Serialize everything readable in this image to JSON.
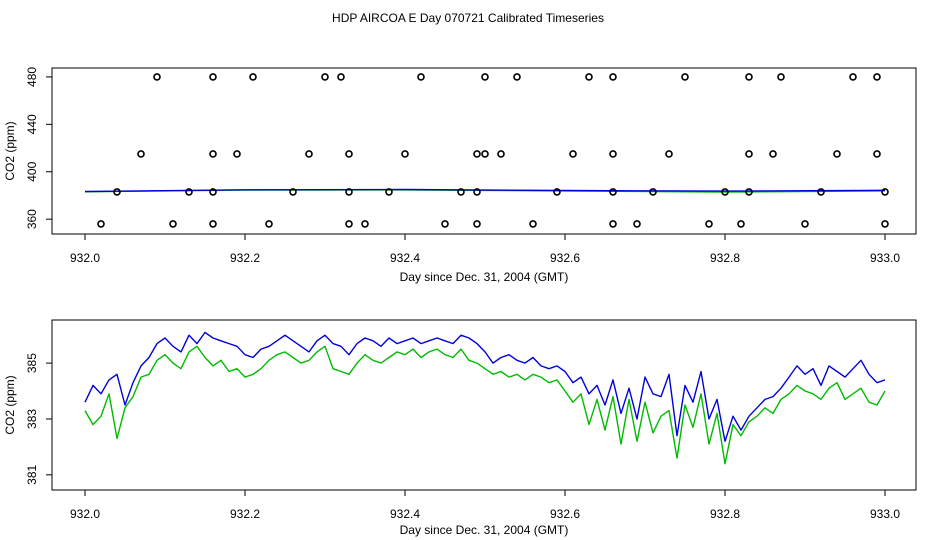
{
  "title": "HDP AIRCOA E  Day 070721  Calibrated Timeseries",
  "colors": {
    "blue": "#0000dd",
    "green": "#00bb00",
    "black": "#000000"
  },
  "chart_data": [
    {
      "type": "scatter",
      "xlabel": "Day since Dec. 31, 2004 (GMT)",
      "ylabel": "CO2 (ppm)",
      "xlim": [
        932.0,
        933.0
      ],
      "ylim": [
        350,
        485
      ],
      "xticks": [
        "932.0",
        "932.2",
        "932.4",
        "932.6",
        "932.8",
        "933.0"
      ],
      "yticks": [
        "360",
        "400",
        "440",
        "480"
      ],
      "grid": false,
      "points_480": [
        932.09,
        932.16,
        932.21,
        932.3,
        932.32,
        932.42,
        932.5,
        932.54,
        932.63,
        932.66,
        932.75,
        932.83,
        932.87,
        932.96,
        932.99
      ],
      "points_415": [
        932.07,
        932.16,
        932.19,
        932.28,
        932.33,
        932.4,
        932.49,
        932.5,
        932.52,
        932.61,
        932.66,
        932.73,
        932.83,
        932.86,
        932.94,
        932.99
      ],
      "points_383": [
        932.04,
        932.13,
        932.16,
        932.26,
        932.33,
        932.38,
        932.47,
        932.49,
        932.59,
        932.66,
        932.71,
        932.8,
        932.83,
        932.92,
        933.0
      ],
      "points_356": [
        932.02,
        932.11,
        932.16,
        932.23,
        932.33,
        932.35,
        932.45,
        932.49,
        932.56,
        932.66,
        932.69,
        932.78,
        932.82,
        932.9,
        933.0
      ],
      "series": [
        {
          "color": "#0000dd",
          "x": [
            932.0,
            932.2,
            932.4,
            932.6,
            932.8,
            933.0
          ],
          "values": [
            383.3,
            384.8,
            385.0,
            384.2,
            383.7,
            384.3
          ]
        },
        {
          "color": "#00bb00",
          "x": [
            932.0,
            932.2,
            932.4,
            932.6,
            932.8,
            933.0
          ],
          "values": [
            383.1,
            384.5,
            384.7,
            383.8,
            382.9,
            383.8
          ]
        }
      ]
    },
    {
      "type": "line",
      "xlabel": "Day since Dec. 31, 2004 (GMT)",
      "ylabel": "CO2 (ppm)",
      "xlim": [
        932.0,
        933.0
      ],
      "ylim": [
        380.6,
        386.4
      ],
      "xticks": [
        "932.0",
        "932.2",
        "932.4",
        "932.6",
        "932.8",
        "933.0"
      ],
      "yticks": [
        "381",
        "383",
        "385"
      ],
      "grid": false,
      "series": [
        {
          "color": "#0000dd",
          "x": [
            932.0,
            932.01,
            932.02,
            932.03,
            932.04,
            932.05,
            932.06,
            932.07,
            932.08,
            932.09,
            932.1,
            932.11,
            932.12,
            932.13,
            932.14,
            932.15,
            932.16,
            932.17,
            932.18,
            932.19,
            932.2,
            932.21,
            932.22,
            932.23,
            932.24,
            932.25,
            932.26,
            932.27,
            932.28,
            932.29,
            932.3,
            932.31,
            932.32,
            932.33,
            932.34,
            932.35,
            932.36,
            932.37,
            932.38,
            932.39,
            932.4,
            932.41,
            932.42,
            932.43,
            932.44,
            932.45,
            932.46,
            932.47,
            932.48,
            932.49,
            932.5,
            932.51,
            932.52,
            932.53,
            932.54,
            932.55,
            932.56,
            932.57,
            932.58,
            932.59,
            932.6,
            932.61,
            932.62,
            932.63,
            932.64,
            932.65,
            932.66,
            932.67,
            932.68,
            932.69,
            932.7,
            932.71,
            932.72,
            932.73,
            932.74,
            932.75,
            932.76,
            932.77,
            932.78,
            932.79,
            932.8,
            932.81,
            932.82,
            932.83,
            932.84,
            932.85,
            932.86,
            932.87,
            932.88,
            932.89,
            932.9,
            932.91,
            932.92,
            932.93,
            932.94,
            932.95,
            932.96,
            932.97,
            932.98,
            932.99,
            933.0
          ],
          "values": [
            383.6,
            384.2,
            383.9,
            384.4,
            384.6,
            383.5,
            384.3,
            384.9,
            385.2,
            385.7,
            385.9,
            385.6,
            385.4,
            386.0,
            385.7,
            386.1,
            385.9,
            385.8,
            385.7,
            385.6,
            385.3,
            385.2,
            385.5,
            385.6,
            385.8,
            386.0,
            385.8,
            385.6,
            385.4,
            385.8,
            386.0,
            385.7,
            385.6,
            385.3,
            385.7,
            385.9,
            385.8,
            385.6,
            385.9,
            385.7,
            385.8,
            385.9,
            385.7,
            385.8,
            385.9,
            385.8,
            385.7,
            386.0,
            385.9,
            385.7,
            385.4,
            385.0,
            385.2,
            385.3,
            385.1,
            385.0,
            385.2,
            384.9,
            384.8,
            384.9,
            384.7,
            384.3,
            384.5,
            383.9,
            384.2,
            383.5,
            384.4,
            383.2,
            384.1,
            383.0,
            384.5,
            383.9,
            383.8,
            384.6,
            382.4,
            384.2,
            383.6,
            384.7,
            383.0,
            383.7,
            382.2,
            383.1,
            382.6,
            383.1,
            383.4,
            383.7,
            383.8,
            384.1,
            384.5,
            384.9,
            384.6,
            384.8,
            384.2,
            384.9,
            384.7,
            384.5,
            384.8,
            385.1,
            384.6,
            384.3,
            384.4
          ]
        },
        {
          "color": "#00bb00",
          "x": [
            932.0,
            932.01,
            932.02,
            932.03,
            932.04,
            932.05,
            932.06,
            932.07,
            932.08,
            932.09,
            932.1,
            932.11,
            932.12,
            932.13,
            932.14,
            932.15,
            932.16,
            932.17,
            932.18,
            932.19,
            932.2,
            932.21,
            932.22,
            932.23,
            932.24,
            932.25,
            932.26,
            932.27,
            932.28,
            932.29,
            932.3,
            932.31,
            932.32,
            932.33,
            932.34,
            932.35,
            932.36,
            932.37,
            932.38,
            932.39,
            932.4,
            932.41,
            932.42,
            932.43,
            932.44,
            932.45,
            932.46,
            932.47,
            932.48,
            932.49,
            932.5,
            932.51,
            932.52,
            932.53,
            932.54,
            932.55,
            932.56,
            932.57,
            932.58,
            932.59,
            932.6,
            932.61,
            932.62,
            932.63,
            932.64,
            932.65,
            932.66,
            932.67,
            932.68,
            932.69,
            932.7,
            932.71,
            932.72,
            932.73,
            932.74,
            932.75,
            932.76,
            932.77,
            932.78,
            932.79,
            932.8,
            932.81,
            932.82,
            932.83,
            932.84,
            932.85,
            932.86,
            932.87,
            932.88,
            932.89,
            932.9,
            932.91,
            932.92,
            932.93,
            932.94,
            932.95,
            932.96,
            932.97,
            932.98,
            932.99,
            933.0
          ],
          "values": [
            383.3,
            382.8,
            383.1,
            383.9,
            382.3,
            383.4,
            383.8,
            384.5,
            384.6,
            385.1,
            385.3,
            385.0,
            384.8,
            385.4,
            385.6,
            385.2,
            384.9,
            385.1,
            384.7,
            384.8,
            384.5,
            384.6,
            384.8,
            385.1,
            385.3,
            385.4,
            385.2,
            385.0,
            385.1,
            385.4,
            385.6,
            384.8,
            384.7,
            384.6,
            385.0,
            385.3,
            385.1,
            385.0,
            385.2,
            385.4,
            385.3,
            385.5,
            385.2,
            385.4,
            385.5,
            385.3,
            385.2,
            385.5,
            385.1,
            385.0,
            384.8,
            384.6,
            384.7,
            384.5,
            384.6,
            384.4,
            384.6,
            384.5,
            384.3,
            384.4,
            384.0,
            383.6,
            383.9,
            382.8,
            383.7,
            382.6,
            383.8,
            382.1,
            383.7,
            382.2,
            383.6,
            382.5,
            383.1,
            383.3,
            381.6,
            383.5,
            382.7,
            383.9,
            382.1,
            383.2,
            381.4,
            382.8,
            382.4,
            382.9,
            383.1,
            383.4,
            383.2,
            383.7,
            383.9,
            384.2,
            384.0,
            383.9,
            383.7,
            384.1,
            384.3,
            383.7,
            383.9,
            384.1,
            383.6,
            383.5,
            384.0
          ]
        }
      ]
    }
  ]
}
